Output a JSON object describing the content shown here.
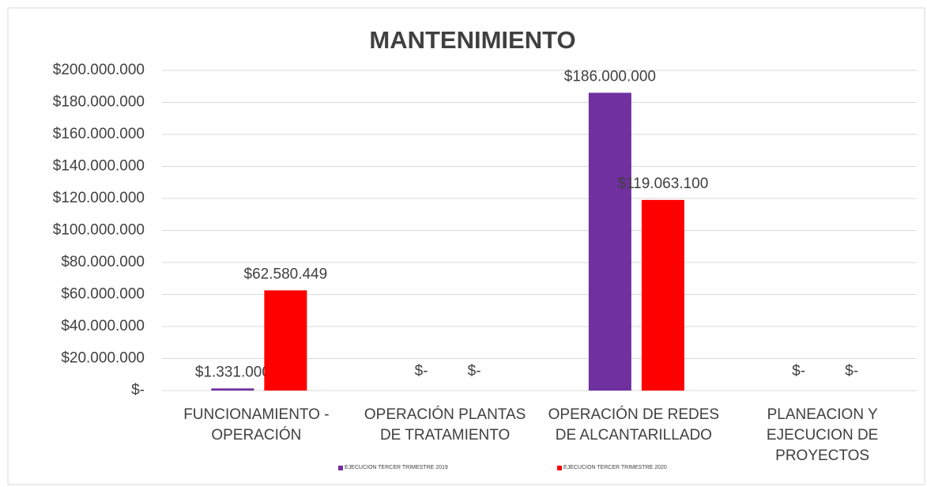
{
  "chart_data": {
    "type": "bar",
    "title": "MANTENIMIENTO",
    "categories": [
      "FUNCIONAMIENTO - OPERACIÓN",
      "OPERACIÓN PLANTAS DE TRATAMIENTO",
      "OPERACIÓN DE REDES DE ALCANTARILLADO",
      "PLANEACION Y EJECUCION DE PROYECTOS"
    ],
    "series": [
      {
        "name": "EJECUCION TERCER TRIMESTRE 2019",
        "color": "#7030a0",
        "values": [
          1331000,
          0,
          186000000,
          0
        ],
        "value_labels": [
          "$1.331.000",
          "$-",
          "$186.000.000",
          "$-"
        ]
      },
      {
        "name": "EJECUCION TERCER TRIMESTRE 2020",
        "color": "#ff0000",
        "values": [
          62580449,
          0,
          119063100,
          0
        ],
        "value_labels": [
          "$62.580.449",
          "$-",
          "$119.063.100",
          "$-"
        ]
      }
    ],
    "ylim": [
      0,
      200000000
    ],
    "yticks": [
      {
        "value": 0,
        "label": "$-"
      },
      {
        "value": 20000000,
        "label": "$20.000.000"
      },
      {
        "value": 40000000,
        "label": "$40.000.000"
      },
      {
        "value": 60000000,
        "label": "$60.000.000"
      },
      {
        "value": 80000000,
        "label": "$80.000.000"
      },
      {
        "value": 100000000,
        "label": "$100.000.000"
      },
      {
        "value": 120000000,
        "label": "$120.000.000"
      },
      {
        "value": 140000000,
        "label": "$140.000.000"
      },
      {
        "value": 160000000,
        "label": "$160.000.000"
      },
      {
        "value": 180000000,
        "label": "$180.000.000"
      },
      {
        "value": 200000000,
        "label": "$200.000.000"
      }
    ],
    "grid": true,
    "legend": "bottom"
  }
}
